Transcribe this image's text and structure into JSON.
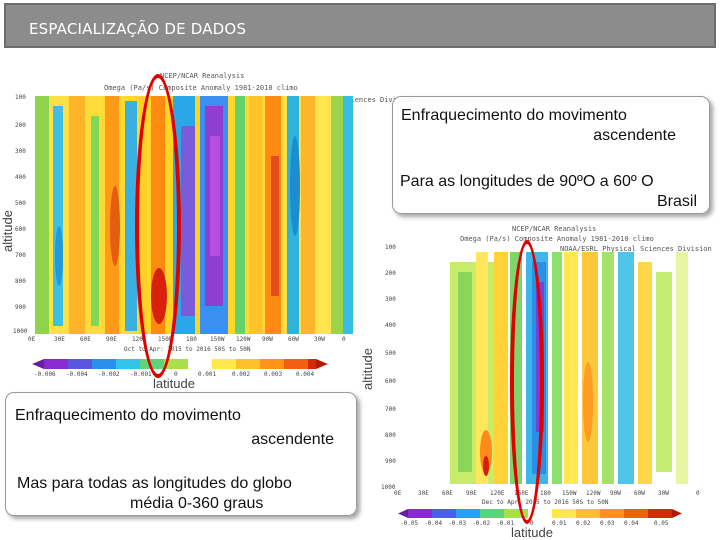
{
  "header": {
    "title": "ESPACIALIZAÇÃO DE DADOS",
    "bar_color": "#8c8c8c"
  },
  "plot1": {
    "title_lines": [
      "NCEP/NCAR Reanalysis",
      "Omega (Pa/s) Composite Anomaly 1981-2010 climo",
      "NOAA/ESRL Physical Sciences Division"
    ],
    "y_ticks": [
      "100",
      "200",
      "300",
      "400",
      "500",
      "600",
      "700",
      "800",
      "900",
      "1000"
    ],
    "x_ticks": [
      "0E",
      "30E",
      "60E",
      "90E",
      "120E",
      "150E",
      "180",
      "150W",
      "120W",
      "90W",
      "60W",
      "30W",
      "0"
    ],
    "x_caption": "Oct to Apr: 2015 to 2016 50S to 50N",
    "colorbar_ticks": [
      "-0.006",
      "-0.004",
      "-0.002",
      "-0.001",
      "0",
      "0.001",
      "0.002",
      "0.003",
      "0.004"
    ],
    "ylabel": "altitude",
    "xlabel": "latitude"
  },
  "plot2": {
    "title_lines": [
      "NCEP/NCAR Reanalysis",
      "Omega (Pa/s) Composite Anomaly 1981-2010 climo",
      "NOAA/ESRL Physical Sciences Division"
    ],
    "y_ticks": [
      "100",
      "200",
      "300",
      "400",
      "500",
      "600",
      "700",
      "800",
      "900",
      "1000"
    ],
    "x_ticks": [
      "0E",
      "30E",
      "60E",
      "90E",
      "120E",
      "150E",
      "180",
      "150W",
      "120W",
      "90W",
      "60W",
      "30W",
      "0"
    ],
    "x_caption": "Dec to Apr: 2015 to 2016 50S to 50N",
    "colorbar_ticks": [
      "-0.05",
      "-0.04",
      "-0.03",
      "-0.02",
      "-0.01",
      "0",
      "0.01",
      "0.02",
      "0.03",
      "0.04",
      "0.05"
    ],
    "ylabel": "altitude",
    "xlabel": "latitude"
  },
  "callout_top": {
    "line1": "Enfraquecimento do movimento",
    "line2": "ascendente",
    "line3": "Para as longitudes de 90ºO a 60º O",
    "line4": "Brasil"
  },
  "callout_bottom": {
    "line1": "Enfraquecimento do movimento",
    "line2": "ascendente",
    "line3": "Mas para todas as longitudes do globo",
    "line4": "média 0-360 graus"
  },
  "highlight_color": "#e00000"
}
